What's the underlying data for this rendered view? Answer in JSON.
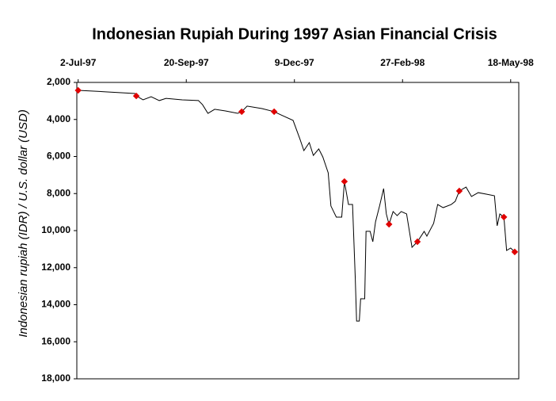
{
  "chart_data": {
    "type": "line",
    "title": "Indonesian Rupiah During 1997 Asian Financial Crisis",
    "y_label": "Indonesian rupiah (IDR) / U.S. dollar (USD)",
    "y_inverted": true,
    "grid": false,
    "xlim": [
      "1997-07-01",
      "1998-05-24"
    ],
    "xticks": [
      {
        "value": "1997-07-02",
        "label": "2-Jul-97"
      },
      {
        "value": "1997-09-20",
        "label": "20-Sep-97"
      },
      {
        "value": "1997-12-09",
        "label": "9-Dec-97"
      },
      {
        "value": "1998-02-27",
        "label": "27-Feb-98"
      },
      {
        "value": "1998-05-18",
        "label": "18-May-98"
      }
    ],
    "ylim": [
      2000,
      18000
    ],
    "yticks": [
      {
        "value": 2000,
        "label": "2,000"
      },
      {
        "value": 4000,
        "label": "4,000"
      },
      {
        "value": 6000,
        "label": "6,000"
      },
      {
        "value": 8000,
        "label": "8,000"
      },
      {
        "value": 10000,
        "label": "10,000"
      },
      {
        "value": 12000,
        "label": "12,000"
      },
      {
        "value": 14000,
        "label": "14,000"
      },
      {
        "value": 16000,
        "label": "16,000"
      },
      {
        "value": 18000,
        "label": "18,000"
      }
    ],
    "color": "#000000",
    "x": [
      "1997-07-02",
      "1997-07-21",
      "1997-08-13",
      "1997-08-14",
      "1997-08-19",
      "1997-08-25",
      "1997-08-31",
      "1997-09-05",
      "1997-09-17",
      "1997-09-29",
      "1997-10-02",
      "1997-10-06",
      "1997-10-11",
      "1997-10-19",
      "1997-10-28",
      "1997-10-31",
      "1997-11-04",
      "1997-11-15",
      "1997-11-24",
      "1997-11-29",
      "1997-12-08",
      "1997-12-13",
      "1997-12-16",
      "1997-12-20",
      "1997-12-23",
      "1997-12-27",
      "1997-12-30",
      "1998-01-03",
      "1998-01-05",
      "1998-01-09",
      "1998-01-13",
      "1998-01-15",
      "1998-01-18",
      "1998-01-21",
      "1998-01-23",
      "1998-01-24",
      "1998-01-26",
      "1998-01-27",
      "1998-01-30",
      "1998-01-31",
      "1998-02-03",
      "1998-02-05",
      "1998-02-07",
      "1998-02-10",
      "1998-02-13",
      "1998-02-15",
      "1998-02-17",
      "1998-02-20",
      "1998-02-23",
      "1998-02-26",
      "1998-03-02",
      "1998-03-06",
      "1998-03-10",
      "1998-03-15",
      "1998-03-17",
      "1998-03-22",
      "1998-03-25",
      "1998-03-29",
      "1998-04-04",
      "1998-04-07",
      "1998-04-10",
      "1998-04-15",
      "1998-04-19",
      "1998-04-24",
      "1998-04-30",
      "1998-05-06",
      "1998-05-08",
      "1998-05-10",
      "1998-05-13",
      "1998-05-15",
      "1998-05-18",
      "1998-05-21"
    ],
    "values": [
      2430,
      2500,
      2600,
      2730,
      2940,
      2770,
      2980,
      2860,
      2940,
      2980,
      3200,
      3670,
      3450,
      3540,
      3670,
      3580,
      3280,
      3410,
      3580,
      3750,
      4050,
      5040,
      5680,
      5250,
      5940,
      5590,
      6020,
      6880,
      8670,
      9270,
      9270,
      7350,
      8590,
      8590,
      12520,
      14880,
      14880,
      13680,
      13680,
      10040,
      10040,
      10600,
      9530,
      8670,
      7730,
      9100,
      9660,
      8970,
      9190,
      8970,
      9100,
      10900,
      10600,
      10040,
      10300,
      9610,
      8590,
      8760,
      8590,
      8420,
      7860,
      7650,
      8160,
      7950,
      8030,
      8120,
      9740,
      9100,
      9270,
      11070,
      10940,
      11150
    ],
    "markers": {
      "color": "#e00000",
      "x": [
        "1997-07-02",
        "1997-08-14",
        "1997-10-31",
        "1997-11-24",
        "1998-01-15",
        "1998-02-17",
        "1998-03-10",
        "1998-04-10",
        "1998-05-13",
        "1998-05-21"
      ],
      "values": [
        2430,
        2730,
        3580,
        3580,
        7350,
        9660,
        10600,
        7860,
        9270,
        11150
      ]
    }
  }
}
